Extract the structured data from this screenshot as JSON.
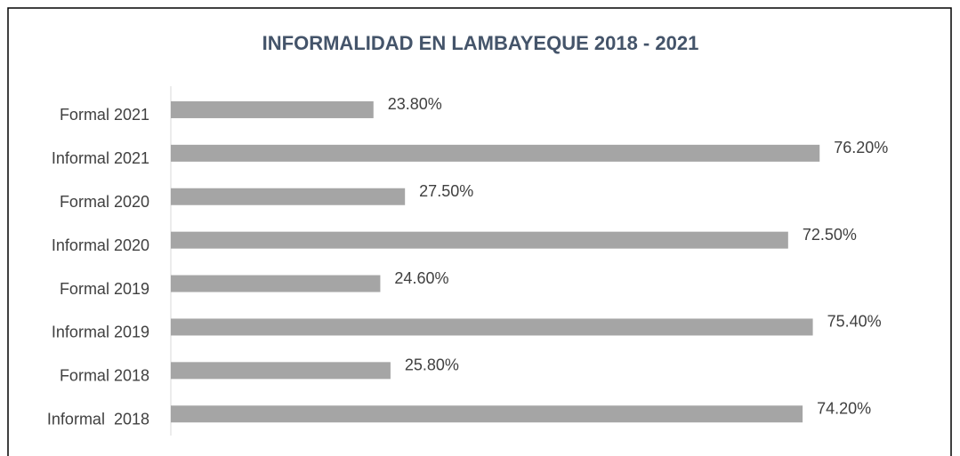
{
  "chart_data": {
    "type": "hbar",
    "title": "INFORMALIDAD EN LAMBAYEQUE 2018 - 2021",
    "categories": [
      "Formal 2021",
      "Informal 2021",
      "Formal 2020",
      "Informal 2020",
      "Formal 2019",
      "Informal 2019",
      "Formal 2018",
      "Informal  2018"
    ],
    "values": [
      23.8,
      76.2,
      27.5,
      72.5,
      24.6,
      75.4,
      25.8,
      74.2
    ],
    "value_labels": [
      "23.80%",
      "76.20%",
      "27.50%",
      "72.50%",
      "24.60%",
      "75.40%",
      "25.80%",
      "74.20%"
    ],
    "color": "#a5a5a5",
    "xlim": [
      0,
      100
    ]
  }
}
